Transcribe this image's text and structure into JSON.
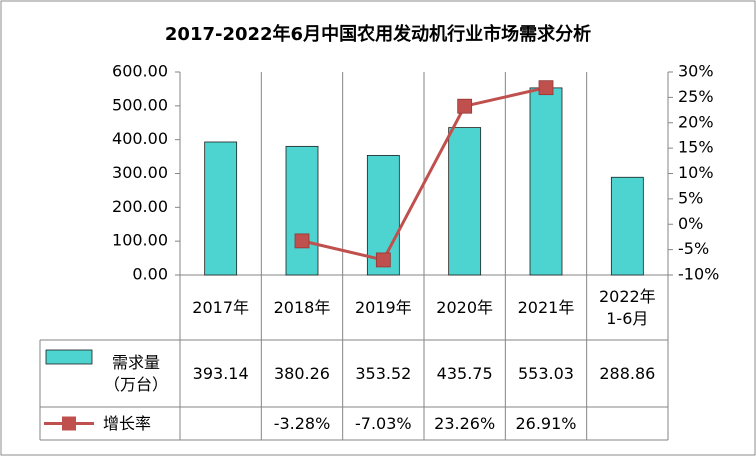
{
  "chart_data": {
    "type": "bar-line-table",
    "title": "2017-2022年6月中国农用发动机行业市场需求分析",
    "categories": [
      "2017年",
      "2018年",
      "2019年",
      "2020年",
      "2021年",
      "2022年\n1-6月"
    ],
    "series": [
      {
        "name": "需求量\n（万台）",
        "type": "bar",
        "color": "#4dd4d0",
        "values": [
          393.14,
          380.26,
          353.52,
          435.75,
          553.03,
          288.86
        ]
      },
      {
        "name": "增长率",
        "type": "line",
        "axis": "y2",
        "color": "#c0504d",
        "values": [
          null,
          -3.28,
          -7.03,
          23.26,
          26.91,
          null
        ],
        "value_labels": [
          null,
          "-3.28%",
          "-7.03%",
          "23.26%",
          "26.91%",
          null
        ]
      }
    ],
    "ylim": [
      0,
      600
    ],
    "yticks": [
      {
        "value": 0,
        "label": "0.00"
      },
      {
        "value": 100,
        "label": "100.00"
      },
      {
        "value": 200,
        "label": "200.00"
      },
      {
        "value": 300,
        "label": "300.00"
      },
      {
        "value": 400,
        "label": "400.00"
      },
      {
        "value": 500,
        "label": "500.00"
      },
      {
        "value": 600,
        "label": "600.00"
      }
    ],
    "y2lim": [
      -10,
      30
    ],
    "y2ticks": [
      {
        "value": -10,
        "label": "-10%"
      },
      {
        "value": -5,
        "label": "-5%"
      },
      {
        "value": 0,
        "label": "0%"
      },
      {
        "value": 5,
        "label": "5%"
      },
      {
        "value": 10,
        "label": "10%"
      },
      {
        "value": 15,
        "label": "15%"
      },
      {
        "value": 20,
        "label": "20%"
      },
      {
        "value": 25,
        "label": "25%"
      },
      {
        "value": 30,
        "label": "30%"
      }
    ]
  }
}
